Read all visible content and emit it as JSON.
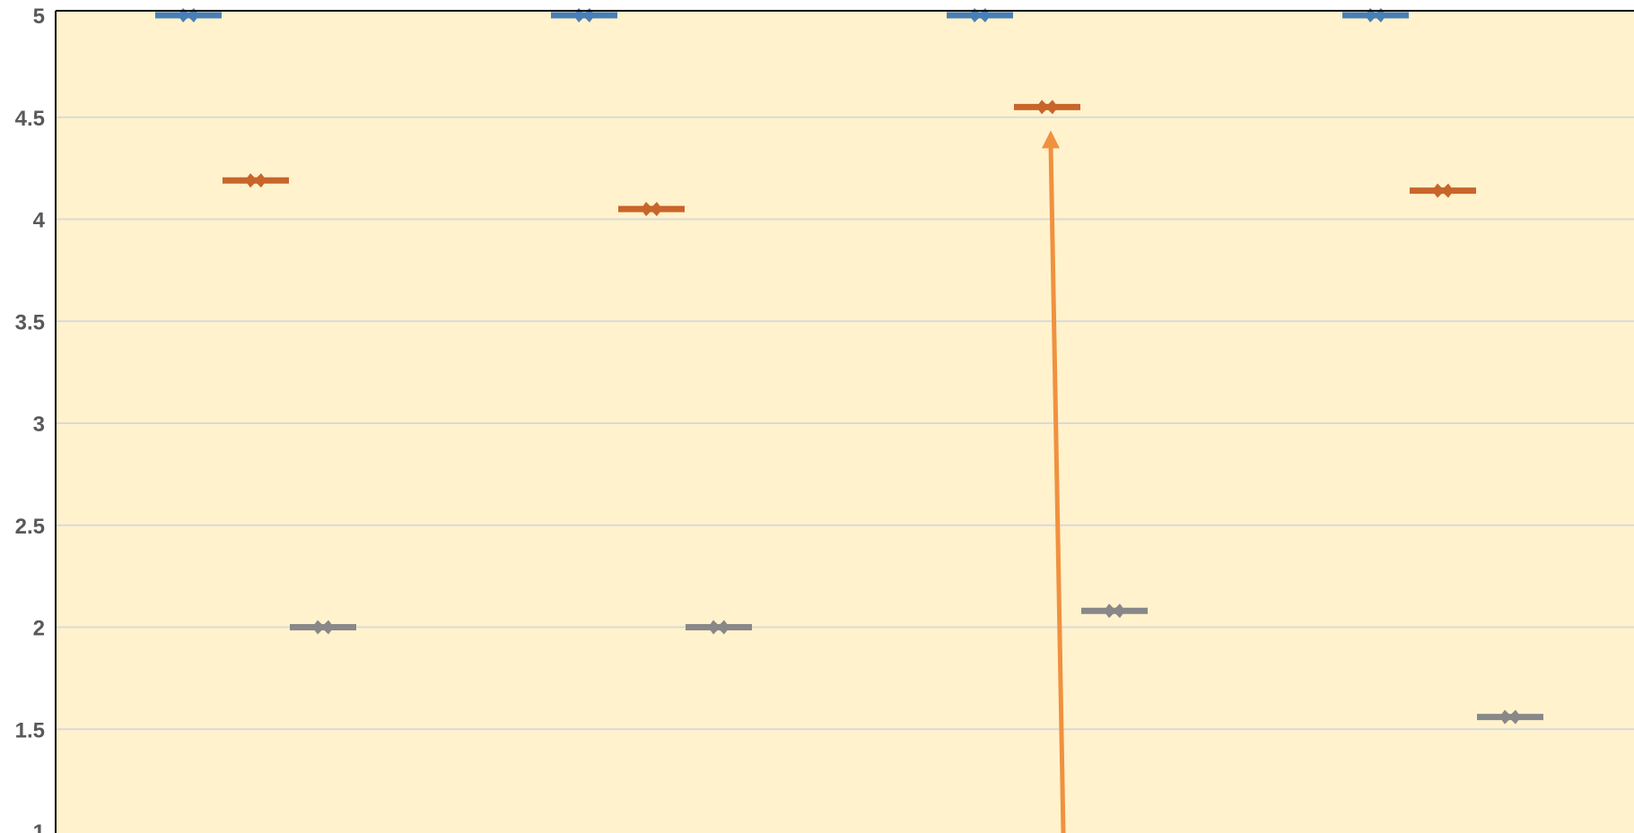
{
  "chart_data": {
    "type": "scatter",
    "title": "",
    "xlabel": "",
    "ylabel": "",
    "ylim": [
      1,
      5
    ],
    "yticks": [
      "1",
      "1.5",
      "2",
      "2.5",
      "3",
      "3.5",
      "4",
      "4.5",
      "5"
    ],
    "grid": true,
    "legend": "none",
    "groups": 4,
    "series": [
      {
        "color": "#4a7fb5",
        "values": [
          5.0,
          5.0,
          5.0,
          5.0
        ]
      },
      {
        "color": "#c8652a",
        "values": [
          4.19,
          4.05,
          4.55,
          4.14
        ]
      },
      {
        "color": "#888888",
        "values": [
          2.0,
          2.0,
          2.08,
          1.56
        ]
      }
    ],
    "annotation": {
      "type": "arrow",
      "color": "#f0913f",
      "group": 3,
      "points_to": 4.55
    }
  },
  "colors": {
    "plot_background": "#fff2cc",
    "gridline": "#d9d9d9",
    "axis": "#000000",
    "tick_text": "#595959"
  }
}
